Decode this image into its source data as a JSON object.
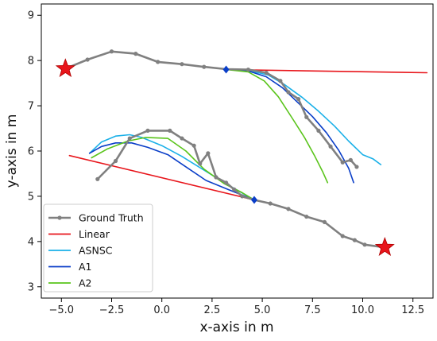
{
  "chart_data": {
    "type": "line",
    "xlabel": "x-axis in m",
    "ylabel": "y-axis in m",
    "xlim": [
      -6,
      13.5
    ],
    "ylim": [
      2.75,
      9.25
    ],
    "xticks": [
      -5.0,
      -2.5,
      0.0,
      2.5,
      5.0,
      7.5,
      10.0,
      12.5
    ],
    "xtick_labels": [
      "−5.0",
      "−2.5",
      "0.0",
      "2.5",
      "5.0",
      "7.5",
      "10.0",
      "12.5"
    ],
    "yticks": [
      3,
      4,
      5,
      6,
      7,
      8,
      9
    ],
    "ytick_labels": [
      "3",
      "4",
      "5",
      "6",
      "7",
      "8",
      "9"
    ],
    "grid": false,
    "legend_position": "lower-left",
    "legend": [
      "Ground Truth",
      "Linear",
      "ASNSC",
      "A1",
      "A2"
    ],
    "colors": {
      "Ground Truth": "#808080",
      "Linear": "#e8151b",
      "ASNSC": "#1ab0e8",
      "A1": "#0a3ec8",
      "A2": "#5ac41b"
    },
    "series": [
      {
        "name": "Ground Truth",
        "segment": 1,
        "points": [
          [
            -4.8,
            7.82
          ],
          [
            -3.7,
            8.02
          ],
          [
            -2.5,
            8.2
          ],
          [
            -1.3,
            8.15
          ],
          [
            -0.2,
            7.97
          ],
          [
            1.0,
            7.92
          ],
          [
            2.1,
            7.86
          ],
          [
            3.2,
            7.81
          ],
          [
            4.3,
            7.8
          ],
          [
            5.2,
            7.73
          ],
          [
            5.9,
            7.55
          ],
          [
            6.3,
            7.3
          ],
          [
            6.8,
            7.15
          ],
          [
            7.2,
            6.75
          ],
          [
            7.8,
            6.45
          ],
          [
            8.4,
            6.1
          ],
          [
            9.0,
            5.75
          ],
          [
            9.4,
            5.8
          ],
          [
            9.7,
            5.65
          ]
        ]
      },
      {
        "name": "Ground Truth",
        "segment": 2,
        "points": [
          [
            -3.2,
            5.38
          ],
          [
            -2.3,
            5.78
          ],
          [
            -1.6,
            6.28
          ],
          [
            -0.7,
            6.45
          ],
          [
            0.4,
            6.45
          ],
          [
            1.0,
            6.28
          ],
          [
            1.6,
            6.12
          ],
          [
            1.9,
            5.72
          ],
          [
            2.3,
            5.95
          ],
          [
            2.7,
            5.42
          ],
          [
            3.2,
            5.3
          ],
          [
            3.6,
            5.15
          ],
          [
            4.0,
            5.0
          ],
          [
            4.6,
            4.92
          ],
          [
            5.4,
            4.84
          ],
          [
            6.3,
            4.72
          ],
          [
            7.2,
            4.55
          ],
          [
            8.1,
            4.43
          ],
          [
            9.0,
            4.12
          ],
          [
            9.6,
            4.03
          ],
          [
            10.1,
            3.93
          ],
          [
            11.1,
            3.87
          ]
        ]
      },
      {
        "name": "Linear",
        "segment": 1,
        "points": [
          [
            3.2,
            7.8
          ],
          [
            13.2,
            7.73
          ]
        ]
      },
      {
        "name": "Linear",
        "segment": 2,
        "points": [
          [
            -4.6,
            5.9
          ],
          [
            4.6,
            4.92
          ]
        ]
      },
      {
        "name": "ASNSC",
        "segment": 1,
        "points": [
          [
            3.2,
            7.8
          ],
          [
            4.3,
            7.78
          ],
          [
            5.3,
            7.68
          ],
          [
            6.1,
            7.47
          ],
          [
            7.0,
            7.18
          ],
          [
            7.8,
            6.88
          ],
          [
            8.6,
            6.55
          ],
          [
            9.3,
            6.22
          ],
          [
            10.0,
            5.92
          ],
          [
            10.5,
            5.83
          ],
          [
            10.9,
            5.7
          ]
        ]
      },
      {
        "name": "ASNSC",
        "segment": 2,
        "points": [
          [
            -3.6,
            5.95
          ],
          [
            -3.0,
            6.2
          ],
          [
            -2.3,
            6.33
          ],
          [
            -1.6,
            6.36
          ],
          [
            -1.0,
            6.3
          ],
          [
            0.0,
            6.12
          ],
          [
            1.0,
            5.88
          ],
          [
            2.2,
            5.55
          ],
          [
            3.3,
            5.25
          ],
          [
            4.6,
            4.92
          ]
        ]
      },
      {
        "name": "A1",
        "segment": 1,
        "points": [
          [
            3.2,
            7.8
          ],
          [
            4.3,
            7.77
          ],
          [
            5.2,
            7.64
          ],
          [
            6.0,
            7.4
          ],
          [
            6.8,
            7.06
          ],
          [
            7.5,
            6.76
          ],
          [
            8.2,
            6.4
          ],
          [
            8.8,
            6.02
          ],
          [
            9.3,
            5.62
          ],
          [
            9.55,
            5.3
          ]
        ]
      },
      {
        "name": "A1",
        "segment": 2,
        "points": [
          [
            -3.6,
            5.95
          ],
          [
            -3.0,
            6.1
          ],
          [
            -2.3,
            6.18
          ],
          [
            -1.5,
            6.18
          ],
          [
            -0.7,
            6.08
          ],
          [
            0.3,
            5.92
          ],
          [
            1.2,
            5.65
          ],
          [
            2.2,
            5.35
          ],
          [
            3.3,
            5.15
          ],
          [
            4.6,
            4.92
          ]
        ]
      },
      {
        "name": "A2",
        "segment": 1,
        "points": [
          [
            3.2,
            7.8
          ],
          [
            4.3,
            7.75
          ],
          [
            5.1,
            7.55
          ],
          [
            5.8,
            7.2
          ],
          [
            6.5,
            6.72
          ],
          [
            7.1,
            6.3
          ],
          [
            7.6,
            5.9
          ],
          [
            8.0,
            5.55
          ],
          [
            8.25,
            5.3
          ]
        ]
      },
      {
        "name": "A2",
        "segment": 2,
        "points": [
          [
            -3.5,
            5.85
          ],
          [
            -2.7,
            6.05
          ],
          [
            -1.7,
            6.22
          ],
          [
            -0.8,
            6.3
          ],
          [
            0.3,
            6.28
          ],
          [
            1.2,
            6.0
          ],
          [
            2.1,
            5.6
          ],
          [
            3.1,
            5.28
          ],
          [
            4.0,
            5.08
          ],
          [
            4.6,
            4.92
          ]
        ]
      }
    ],
    "markers": [
      {
        "type": "star",
        "color": "#e8151b",
        "x": -4.8,
        "y": 7.82
      },
      {
        "type": "star",
        "color": "#e8151b",
        "x": 11.1,
        "y": 3.87
      },
      {
        "type": "diamond",
        "color": "#0a3ec8",
        "x": 3.2,
        "y": 7.8
      },
      {
        "type": "diamond",
        "color": "#0a3ec8",
        "x": 4.6,
        "y": 4.92
      }
    ]
  }
}
